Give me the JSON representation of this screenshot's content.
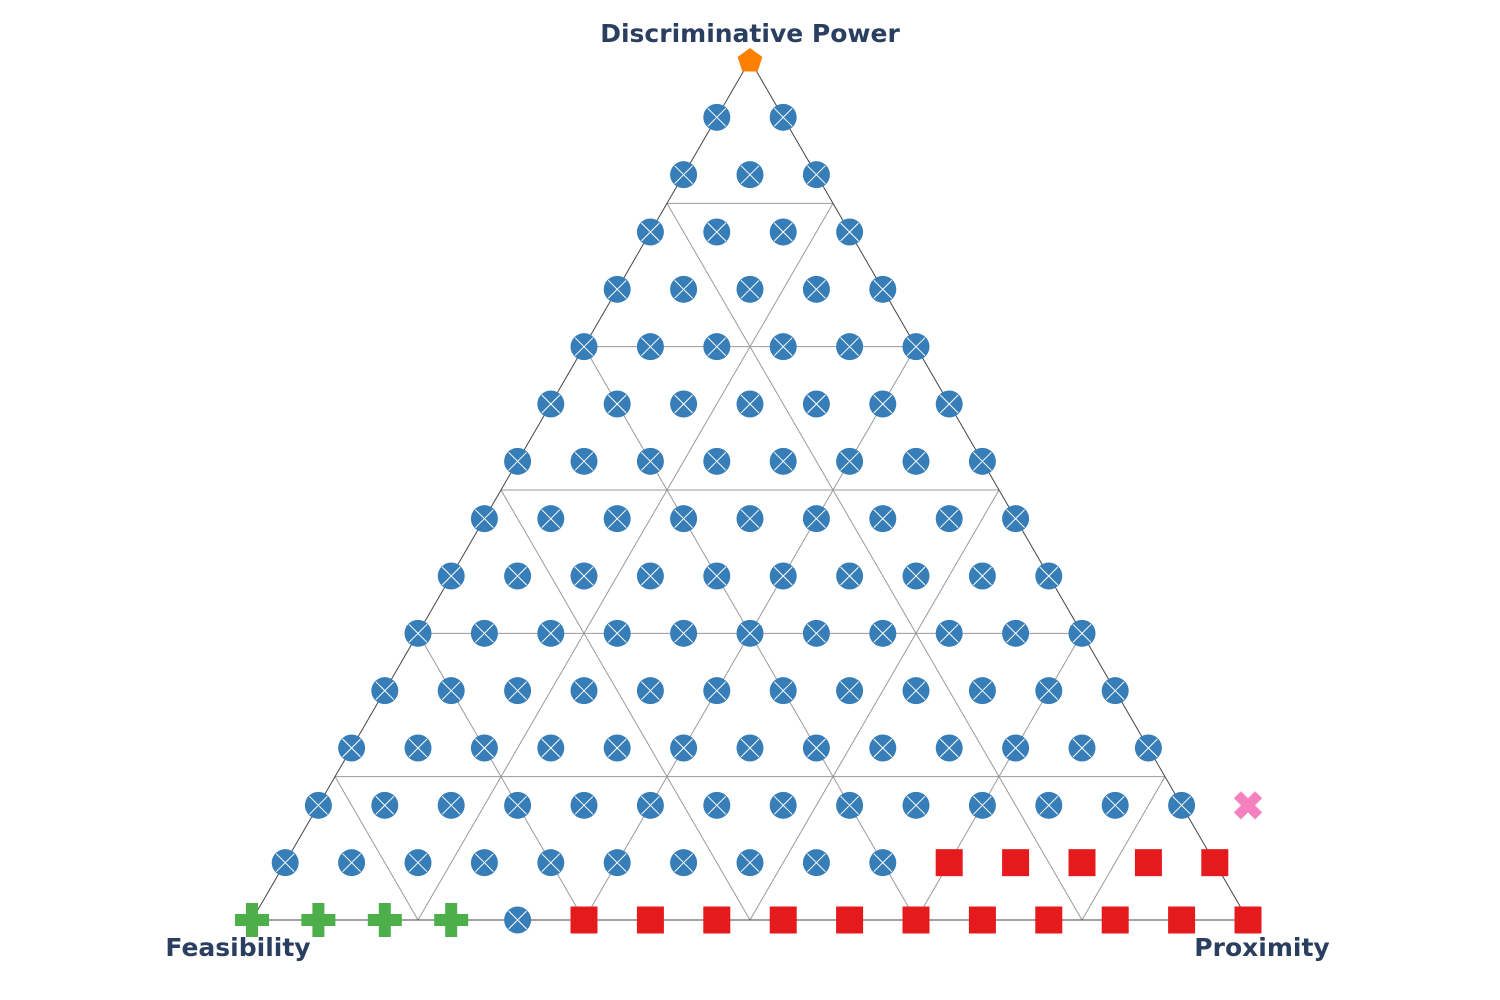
{
  "chart_data": {
    "type": "ternary-scatter",
    "axes": {
      "top": "Discriminative Power",
      "left": "Feasibility",
      "right": "Proximity"
    },
    "grid_divisions": 6,
    "resolution": 15,
    "colors": {
      "circle": "#377eb8",
      "square": "#e41a1c",
      "cross": "#4daf4a",
      "x": "#f781bf",
      "pentagon": "#ff7f00"
    },
    "series": [
      {
        "marker": "pentagon",
        "points": [
          [
            15,
            0
          ]
        ]
      },
      {
        "marker": "x",
        "points": [
          [
            2,
            14
          ]
        ]
      },
      {
        "marker": "cross",
        "points": [
          [
            0,
            0
          ],
          [
            0,
            1
          ],
          [
            0,
            2
          ],
          [
            0,
            3
          ]
        ]
      },
      {
        "marker": "square",
        "points": [
          [
            1,
            10
          ],
          [
            1,
            11
          ],
          [
            1,
            12
          ],
          [
            1,
            13
          ],
          [
            1,
            14
          ],
          [
            0,
            5
          ],
          [
            0,
            6
          ],
          [
            0,
            7
          ],
          [
            0,
            8
          ],
          [
            0,
            9
          ],
          [
            0,
            10
          ],
          [
            0,
            11
          ],
          [
            0,
            12
          ],
          [
            0,
            13
          ],
          [
            0,
            14
          ],
          [
            0,
            15
          ]
        ]
      },
      {
        "marker": "circle",
        "points": [
          [
            14,
            0
          ],
          [
            14,
            1
          ],
          [
            13,
            0
          ],
          [
            13,
            1
          ],
          [
            13,
            2
          ],
          [
            12,
            0
          ],
          [
            12,
            1
          ],
          [
            12,
            2
          ],
          [
            12,
            3
          ],
          [
            11,
            0
          ],
          [
            11,
            1
          ],
          [
            11,
            2
          ],
          [
            11,
            3
          ],
          [
            11,
            4
          ],
          [
            10,
            0
          ],
          [
            10,
            1
          ],
          [
            10,
            2
          ],
          [
            10,
            3
          ],
          [
            10,
            4
          ],
          [
            10,
            5
          ],
          [
            9,
            0
          ],
          [
            9,
            1
          ],
          [
            9,
            2
          ],
          [
            9,
            3
          ],
          [
            9,
            4
          ],
          [
            9,
            5
          ],
          [
            9,
            6
          ],
          [
            8,
            0
          ],
          [
            8,
            1
          ],
          [
            8,
            2
          ],
          [
            8,
            3
          ],
          [
            8,
            4
          ],
          [
            8,
            5
          ],
          [
            8,
            6
          ],
          [
            8,
            7
          ],
          [
            7,
            0
          ],
          [
            7,
            1
          ],
          [
            7,
            2
          ],
          [
            7,
            3
          ],
          [
            7,
            4
          ],
          [
            7,
            5
          ],
          [
            7,
            6
          ],
          [
            7,
            7
          ],
          [
            7,
            8
          ],
          [
            6,
            0
          ],
          [
            6,
            1
          ],
          [
            6,
            2
          ],
          [
            6,
            3
          ],
          [
            6,
            4
          ],
          [
            6,
            5
          ],
          [
            6,
            6
          ],
          [
            6,
            7
          ],
          [
            6,
            8
          ],
          [
            6,
            9
          ],
          [
            5,
            0
          ],
          [
            5,
            1
          ],
          [
            5,
            2
          ],
          [
            5,
            3
          ],
          [
            5,
            4
          ],
          [
            5,
            5
          ],
          [
            5,
            6
          ],
          [
            5,
            7
          ],
          [
            5,
            8
          ],
          [
            5,
            9
          ],
          [
            5,
            10
          ],
          [
            4,
            0
          ],
          [
            4,
            1
          ],
          [
            4,
            2
          ],
          [
            4,
            3
          ],
          [
            4,
            4
          ],
          [
            4,
            5
          ],
          [
            4,
            6
          ],
          [
            4,
            7
          ],
          [
            4,
            8
          ],
          [
            4,
            9
          ],
          [
            4,
            10
          ],
          [
            4,
            11
          ],
          [
            3,
            0
          ],
          [
            3,
            1
          ],
          [
            3,
            2
          ],
          [
            3,
            3
          ],
          [
            3,
            4
          ],
          [
            3,
            5
          ],
          [
            3,
            6
          ],
          [
            3,
            7
          ],
          [
            3,
            8
          ],
          [
            3,
            9
          ],
          [
            3,
            10
          ],
          [
            3,
            11
          ],
          [
            3,
            12
          ],
          [
            2,
            0
          ],
          [
            2,
            1
          ],
          [
            2,
            2
          ],
          [
            2,
            3
          ],
          [
            2,
            4
          ],
          [
            2,
            5
          ],
          [
            2,
            6
          ],
          [
            2,
            7
          ],
          [
            2,
            8
          ],
          [
            2,
            9
          ],
          [
            2,
            10
          ],
          [
            2,
            11
          ],
          [
            2,
            12
          ],
          [
            2,
            13
          ],
          [
            1,
            0
          ],
          [
            1,
            1
          ],
          [
            1,
            2
          ],
          [
            1,
            3
          ],
          [
            1,
            4
          ],
          [
            1,
            5
          ],
          [
            1,
            6
          ],
          [
            1,
            7
          ],
          [
            1,
            8
          ],
          [
            1,
            9
          ],
          [
            0,
            4
          ]
        ]
      }
    ]
  }
}
